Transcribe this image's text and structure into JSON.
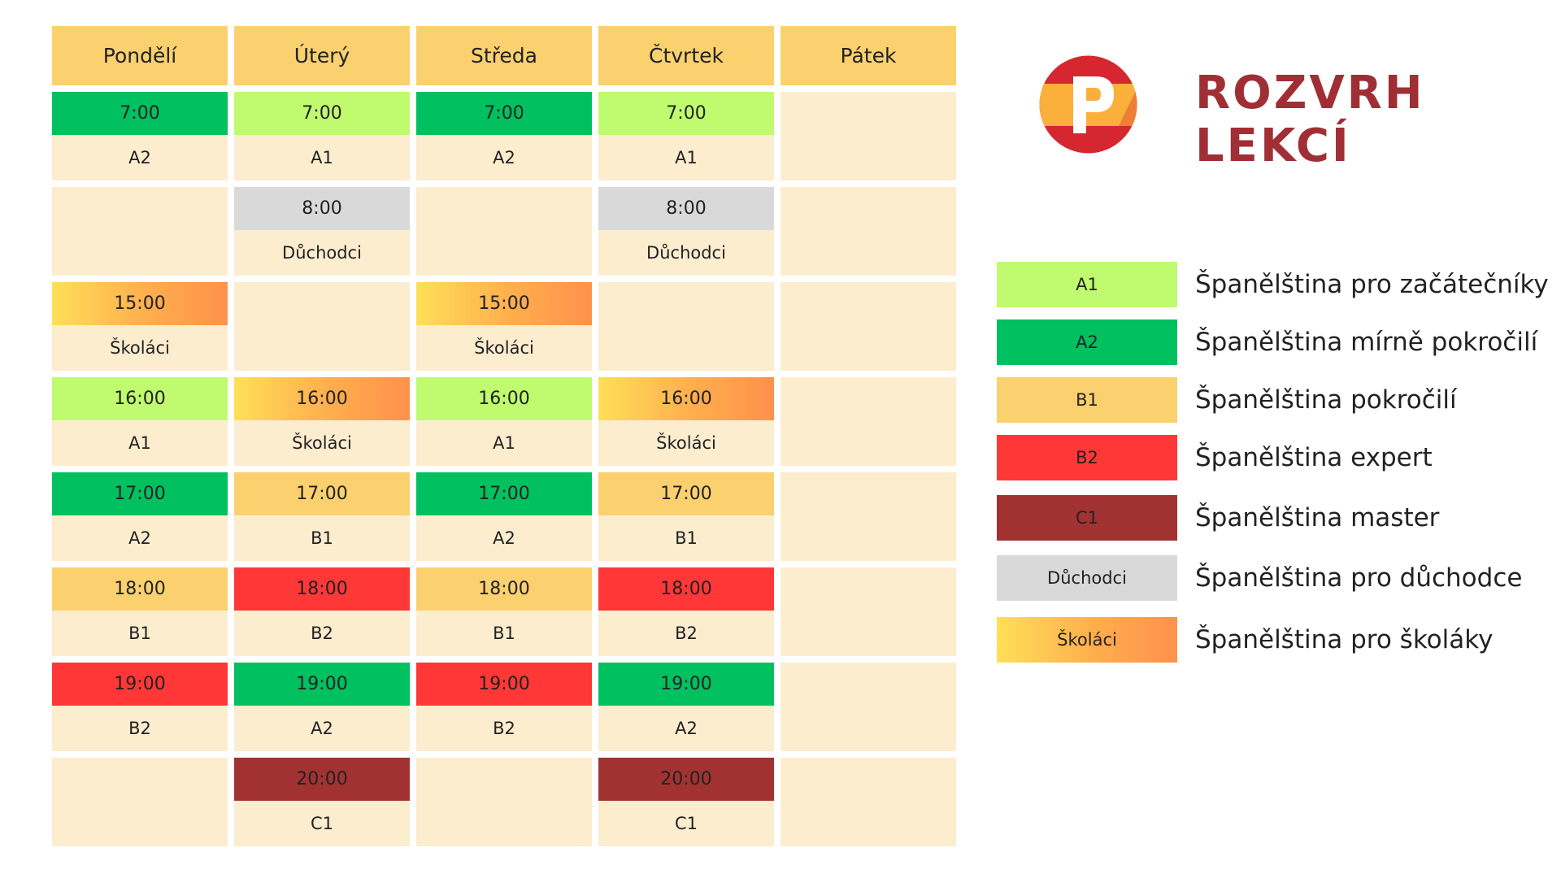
{
  "title": "ROZVRH LEKCÍ",
  "logo": {
    "letter": "P",
    "colors": {
      "red": "#d6262f",
      "yellow": "#fbb03b",
      "white": "#ffffff"
    }
  },
  "days": [
    "Pondělí",
    "Úterý",
    "Středa",
    "Čtvrtek",
    "Pátek"
  ],
  "level_colors": {
    "A1": "#c0fa6f",
    "A2": "#00c060",
    "B1": "#fbd06f",
    "B2": "#ff3737",
    "C1": "#a23232",
    "Důchodci": "#d9d9d9",
    "Školáci": "gradient #ffdf58 → #ff914d"
  },
  "rows": [
    [
      {
        "time": "7:00",
        "label": "A2",
        "cls": "c-A2"
      },
      {
        "time": "7:00",
        "label": "A1",
        "cls": "c-A1"
      },
      {
        "time": "7:00",
        "label": "A2",
        "cls": "c-A2"
      },
      {
        "time": "7:00",
        "label": "A1",
        "cls": "c-A1"
      },
      null
    ],
    [
      null,
      {
        "time": "8:00",
        "label": "Důchodci",
        "cls": "c-D"
      },
      null,
      {
        "time": "8:00",
        "label": "Důchodci",
        "cls": "c-D"
      },
      null
    ],
    [
      {
        "time": "15:00",
        "label": "Školáci",
        "cls": "c-S"
      },
      null,
      {
        "time": "15:00",
        "label": "Školáci",
        "cls": "c-S"
      },
      null,
      null
    ],
    [
      {
        "time": "16:00",
        "label": "A1",
        "cls": "c-A1"
      },
      {
        "time": "16:00",
        "label": "Školáci",
        "cls": "c-S"
      },
      {
        "time": "16:00",
        "label": "A1",
        "cls": "c-A1"
      },
      {
        "time": "16:00",
        "label": "Školáci",
        "cls": "c-S"
      },
      null
    ],
    [
      {
        "time": "17:00",
        "label": "A2",
        "cls": "c-A2"
      },
      {
        "time": "17:00",
        "label": "B1",
        "cls": "c-B1"
      },
      {
        "time": "17:00",
        "label": "A2",
        "cls": "c-A2"
      },
      {
        "time": "17:00",
        "label": "B1",
        "cls": "c-B1"
      },
      null
    ],
    [
      {
        "time": "18:00",
        "label": "B1",
        "cls": "c-B1"
      },
      {
        "time": "18:00",
        "label": "B2",
        "cls": "c-B2"
      },
      {
        "time": "18:00",
        "label": "B1",
        "cls": "c-B1"
      },
      {
        "time": "18:00",
        "label": "B2",
        "cls": "c-B2"
      },
      null
    ],
    [
      {
        "time": "19:00",
        "label": "B2",
        "cls": "c-B2"
      },
      {
        "time": "19:00",
        "label": "A2",
        "cls": "c-A2"
      },
      {
        "time": "19:00",
        "label": "B2",
        "cls": "c-B2"
      },
      {
        "time": "19:00",
        "label": "A2",
        "cls": "c-A2"
      },
      null
    ],
    [
      null,
      {
        "time": "20:00",
        "label": "C1",
        "cls": "c-C1"
      },
      null,
      {
        "time": "20:00",
        "label": "C1",
        "cls": "c-C1"
      },
      null
    ]
  ],
  "legend": [
    {
      "code": "A1",
      "desc": "Španělština pro začátečníky",
      "cls": "c-A1"
    },
    {
      "code": "A2",
      "desc": "Španělština mírně pokročilí",
      "cls": "c-A2"
    },
    {
      "code": "B1",
      "desc": "Španělština pokročilí",
      "cls": "c-B1"
    },
    {
      "code": "B2",
      "desc": "Španělština expert",
      "cls": "c-B2"
    },
    {
      "code": "C1",
      "desc": "Španělština master",
      "cls": "c-C1"
    },
    {
      "code": "Důchodci",
      "desc": "Španělština pro důchodce",
      "cls": "c-D"
    },
    {
      "code": "Školáci",
      "desc": "Španělština pro školáky",
      "cls": "c-S"
    }
  ]
}
